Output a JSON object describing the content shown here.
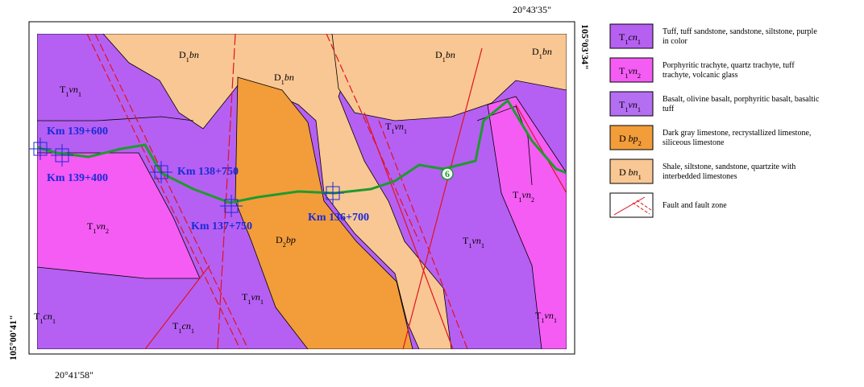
{
  "coords": {
    "top_right": "20°43'35\"",
    "right": "105°03'34\"",
    "left": "105°00'41\"",
    "bottom_left": "20°41'58\""
  },
  "route_markers": [
    "Km 139+600",
    "Km 139+400",
    "Km 138+750",
    "Km 137+750",
    "Km 136+700"
  ],
  "route_number": "6",
  "map_units": [
    {
      "parts": [
        [
          "D",
          "n"
        ],
        [
          "1",
          "sub"
        ],
        [
          "bn",
          "it"
        ]
      ]
    },
    {
      "parts": [
        [
          "D",
          "n"
        ],
        [
          "1",
          "sub"
        ],
        [
          "bn",
          "it"
        ]
      ]
    },
    {
      "parts": [
        [
          "D",
          "n"
        ],
        [
          "1",
          "sub"
        ],
        [
          "bn",
          "it"
        ]
      ]
    },
    {
      "parts": [
        [
          "D",
          "n"
        ],
        [
          "1",
          "sub"
        ],
        [
          "bn",
          "it"
        ]
      ]
    },
    {
      "parts": [
        [
          "T",
          "n"
        ],
        [
          "1",
          "sub"
        ],
        [
          "vn",
          "it"
        ],
        [
          "1",
          "sub"
        ]
      ]
    },
    {
      "parts": [
        [
          "T",
          "n"
        ],
        [
          "1",
          "sub"
        ],
        [
          "vn",
          "it"
        ],
        [
          "1",
          "sub"
        ]
      ]
    },
    {
      "parts": [
        [
          "T",
          "n"
        ],
        [
          "1",
          "sub"
        ],
        [
          "vn",
          "it"
        ],
        [
          "2",
          "sub"
        ]
      ]
    },
    {
      "parts": [
        [
          "T",
          "n"
        ],
        [
          "1",
          "sub"
        ],
        [
          "vn",
          "it"
        ],
        [
          "2",
          "sub"
        ]
      ]
    },
    {
      "parts": [
        [
          "D",
          "n"
        ],
        [
          "2",
          "sub"
        ],
        [
          "bp",
          "it"
        ]
      ]
    },
    {
      "parts": [
        [
          "T",
          "n"
        ],
        [
          "1",
          "sub"
        ],
        [
          "vn",
          "it"
        ],
        [
          "1",
          "sub"
        ]
      ]
    },
    {
      "parts": [
        [
          "T",
          "n"
        ],
        [
          "1",
          "sub"
        ],
        [
          "vn",
          "it"
        ],
        [
          "1",
          "sub"
        ]
      ]
    },
    {
      "parts": [
        [
          "T",
          "n"
        ],
        [
          "1",
          "sub"
        ],
        [
          "cn",
          "it"
        ],
        [
          "1",
          "sub"
        ]
      ]
    },
    {
      "parts": [
        [
          "T",
          "n"
        ],
        [
          "1",
          "sub"
        ],
        [
          "cn",
          "it"
        ],
        [
          "1",
          "sub"
        ]
      ]
    },
    {
      "parts": [
        [
          "T",
          "n"
        ],
        [
          "1",
          "sub"
        ],
        [
          "vn",
          "it"
        ],
        [
          "1",
          "sub"
        ]
      ]
    }
  ],
  "legend": [
    {
      "color": "#b660f2",
      "parts": [
        [
          "T",
          "n"
        ],
        [
          "1",
          "sub"
        ],
        [
          "cn",
          "it"
        ],
        [
          "1",
          "sub"
        ]
      ],
      "lines": [
        "Tuff, tuff sandstone, sandstone, siltstone, purple",
        "in color"
      ]
    },
    {
      "color": "#f45cf4",
      "parts": [
        [
          "T",
          "n"
        ],
        [
          "1",
          "sub"
        ],
        [
          "vn",
          "it"
        ],
        [
          "2",
          "sub"
        ]
      ],
      "lines": [
        "Porphyritic trachyte, quartz trachyte, tuff",
        "trachyte, volcanic glass"
      ]
    },
    {
      "color": "#b46ef2",
      "parts": [
        [
          "T",
          "n"
        ],
        [
          "1",
          "sub"
        ],
        [
          "vn",
          "it"
        ],
        [
          "1",
          "sub"
        ]
      ],
      "lines": [
        "Basalt, olivine basalt, porphyritic basalt, basaltic",
        "tuff"
      ]
    },
    {
      "color": "#f29d3a",
      "parts": [
        [
          "D ",
          "n"
        ],
        [
          "bp",
          "it"
        ],
        [
          "2",
          "sub"
        ]
      ],
      "lines": [
        "Dark gray limestone, recrystallized limestone,",
        "siliceous limestone"
      ]
    },
    {
      "color": "#f9c794",
      "parts": [
        [
          "D ",
          "n"
        ],
        [
          "bn",
          "it"
        ],
        [
          "1",
          "sub"
        ]
      ],
      "lines": [
        "Shale, siltstone, sandstone, quartzite with",
        "interbedded limestones"
      ]
    },
    {
      "color": "#ffffff",
      "lines": [
        "Fault and fault zone"
      ]
    }
  ]
}
